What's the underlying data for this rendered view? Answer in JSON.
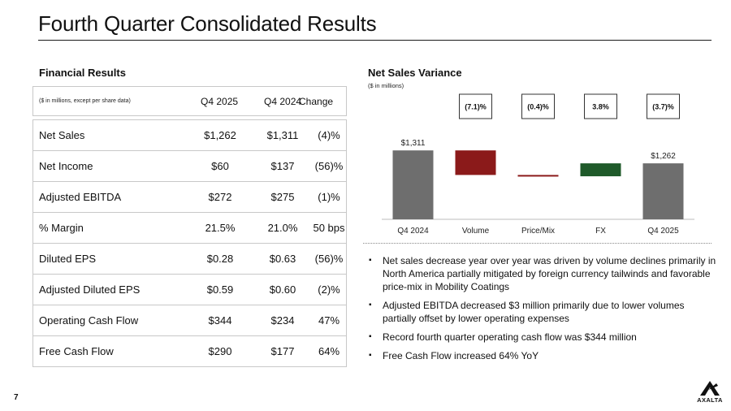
{
  "page": {
    "title": "Fourth Quarter Consolidated Results",
    "page_number": "7",
    "logo_text": "AXALTA"
  },
  "financial_results": {
    "title": "Financial Results",
    "header_note": "($ in millions, except per share data)",
    "columns": [
      "Q4 2025",
      "Q4 2024",
      "Change"
    ],
    "rows": [
      {
        "label": "Net Sales",
        "q4_2025": "$1,262",
        "q4_2024": "$1,311",
        "change": "(4)%"
      },
      {
        "label": "Net Income",
        "q4_2025": "$60",
        "q4_2024": "$137",
        "change": "(56)%"
      },
      {
        "label": "Adjusted EBITDA",
        "q4_2025": "$272",
        "q4_2024": "$275",
        "change": "(1)%"
      },
      {
        "label": "% Margin",
        "q4_2025": "21.5%",
        "q4_2024": "21.0%",
        "change": "50 bps"
      },
      {
        "label": "Diluted EPS",
        "q4_2025": "$0.28",
        "q4_2024": "$0.63",
        "change": "(56)%"
      },
      {
        "label": "Adjusted Diluted EPS",
        "q4_2025": "$0.59",
        "q4_2024": "$0.60",
        "change": "(2)%"
      },
      {
        "label": "Operating Cash Flow",
        "q4_2025": "$344",
        "q4_2024": "$234",
        "change": "47%"
      },
      {
        "label": "Free Cash Flow",
        "q4_2025": "$290",
        "q4_2024": "$177",
        "change": "64%"
      }
    ]
  },
  "chart_data": {
    "type": "bar",
    "subtype": "waterfall",
    "title": "Net Sales Variance",
    "subtitle": "($ in millions)",
    "categories": [
      "Q4 2024",
      "Volume",
      "Price/Mix",
      "FX",
      "Q4 2025"
    ],
    "steps": [
      {
        "category": "Q4 2024",
        "kind": "total",
        "value": 1311,
        "label": "$1,311",
        "pct": "",
        "color": "#6e6e6e"
      },
      {
        "category": "Volume",
        "kind": "delta",
        "value": -93,
        "label": "",
        "pct": "(7.1)%",
        "color": "#8b1a1a"
      },
      {
        "category": "Price/Mix",
        "kind": "delta",
        "value": -5,
        "label": "",
        "pct": "(0.4)%",
        "color": "#8b1a1a"
      },
      {
        "category": "FX",
        "kind": "delta",
        "value": 49,
        "label": "",
        "pct": "3.8%",
        "color": "#1f5a2a"
      },
      {
        "category": "Q4 2025",
        "kind": "total",
        "value": 1262,
        "label": "$1,262",
        "pct": "(3.7)%",
        "color": "#6e6e6e"
      }
    ],
    "ylim": [
      1050,
      1330
    ],
    "grid": false,
    "legend": "none"
  },
  "bullets": [
    "Net sales decrease year over year was driven by volume declines primarily in North America partially mitigated by foreign currency tailwinds and favorable price-mix in Mobility Coatings",
    "Adjusted EBITDA decreased $3 million primarily due to lower volumes partially offset by lower operating expenses",
    "Record fourth quarter operating cash flow was $344 million",
    "Free Cash Flow increased 64% YoY"
  ],
  "colors": {
    "total_bar": "#6e6e6e",
    "negative_bar": "#8b1a1a",
    "positive_bar": "#1f5a2a",
    "rule": "#1a1a1a",
    "table_border": "#c8c8c8"
  }
}
